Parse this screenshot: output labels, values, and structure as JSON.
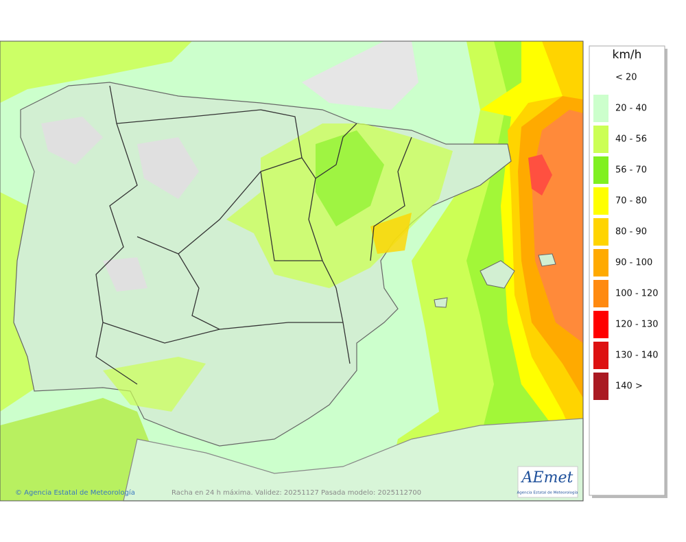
{
  "legend": {
    "title": "km/h",
    "items": [
      {
        "label": "< 20",
        "color": "#ffffff"
      },
      {
        "label": "20 - 40",
        "color": "#ccffcc"
      },
      {
        "label": "40 - 56",
        "color": "#ccff55"
      },
      {
        "label": "56 - 70",
        "color": "#80f020"
      },
      {
        "label": "70 - 80",
        "color": "#ffff00"
      },
      {
        "label": "80 - 90",
        "color": "#ffd400"
      },
      {
        "label": "90 - 100",
        "color": "#ffaa00"
      },
      {
        "label": "100 - 120",
        "color": "#ff8a10"
      },
      {
        "label": "120 - 130",
        "color": "#ff0000"
      },
      {
        "label": "130 - 140",
        "color": "#dd1111"
      },
      {
        "label": "140 >",
        "color": "#aa1a22"
      }
    ]
  },
  "footer": {
    "credit": "© Agencia Estatal de Meteorología",
    "caption": "Racha en 24 h máxima. Validez: 20251127 Pasada modelo: 2025112700"
  },
  "logo": {
    "name": "AEmet",
    "subtitle": "Agencia Estatal de Meteorología"
  }
}
